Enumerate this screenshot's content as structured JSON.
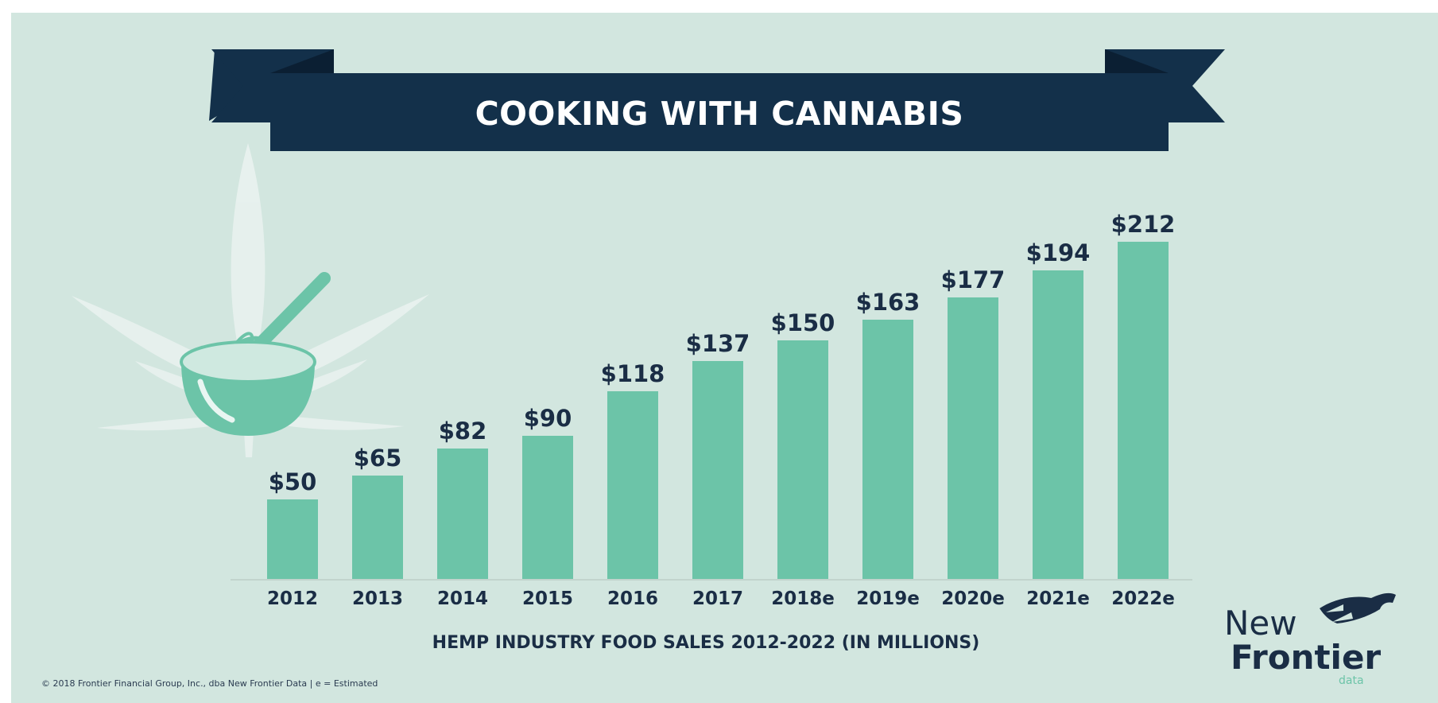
{
  "title": "COOKING WITH CANNABIS",
  "footer_credit": "© 2018 Frontier Financial Group, Inc., dba New Frontier Data | e = Estimated",
  "logo": {
    "line1": "New",
    "line2": "Frontier",
    "line3": "data"
  },
  "colors": {
    "background": "#d2e6df",
    "bar": "#6cc4a8",
    "banner": "#13304a",
    "text": "#1a2d45",
    "leaf": "#e8f1ee"
  },
  "icons": [
    "cannabis-leaf-icon",
    "mixing-bowl-icon",
    "whisk-icon",
    "horse-icon"
  ],
  "chart_data": {
    "type": "bar",
    "title": "COOKING WITH CANNABIS",
    "xlabel": "HEMP INDUSTRY FOOD SALES 2012-2022 (IN MILLIONS)",
    "ylabel": "",
    "ylim": [
      0,
      212
    ],
    "grid": false,
    "categories": [
      "2012",
      "2013",
      "2014",
      "2015",
      "2016",
      "2017",
      "2018e",
      "2019e",
      "2020e",
      "2021e",
      "2022e"
    ],
    "values": [
      50,
      65,
      82,
      90,
      118,
      137,
      150,
      163,
      177,
      194,
      212
    ],
    "value_labels": [
      "$50",
      "$65",
      "$82",
      "$90",
      "$118",
      "$137",
      "$150",
      "$163",
      "$177",
      "$194",
      "$212"
    ]
  }
}
